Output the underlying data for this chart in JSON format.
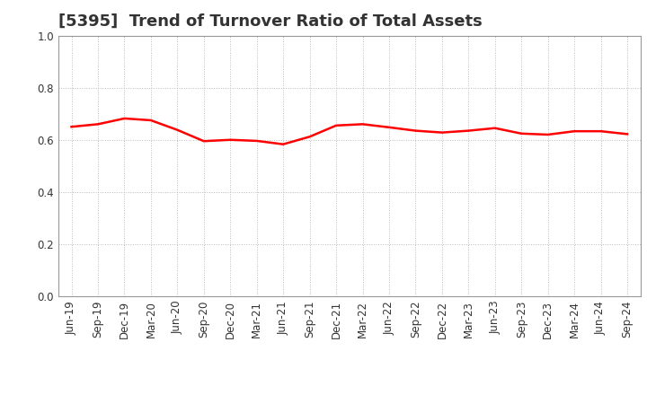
{
  "title": "[5395]  Trend of Turnover Ratio of Total Assets",
  "labels": [
    "Jun-19",
    "Sep-19",
    "Dec-19",
    "Mar-20",
    "Jun-20",
    "Sep-20",
    "Dec-20",
    "Mar-21",
    "Jun-21",
    "Sep-21",
    "Dec-21",
    "Mar-22",
    "Jun-22",
    "Sep-22",
    "Dec-22",
    "Mar-23",
    "Jun-23",
    "Sep-23",
    "Dec-23",
    "Mar-24",
    "Jun-24",
    "Sep-24"
  ],
  "values": [
    0.65,
    0.66,
    0.682,
    0.675,
    0.638,
    0.595,
    0.6,
    0.596,
    0.583,
    0.612,
    0.655,
    0.66,
    0.648,
    0.635,
    0.628,
    0.635,
    0.645,
    0.624,
    0.62,
    0.633,
    0.633,
    0.622
  ],
  "line_color": "#ff0000",
  "line_width": 1.8,
  "ylim": [
    0.0,
    1.0
  ],
  "yticks": [
    0.0,
    0.2,
    0.4,
    0.6,
    0.8,
    1.0
  ],
  "background_color": "#ffffff",
  "grid_color": "#bbbbbb",
  "title_fontsize": 13,
  "tick_fontsize": 8.5,
  "title_color": "#333333"
}
